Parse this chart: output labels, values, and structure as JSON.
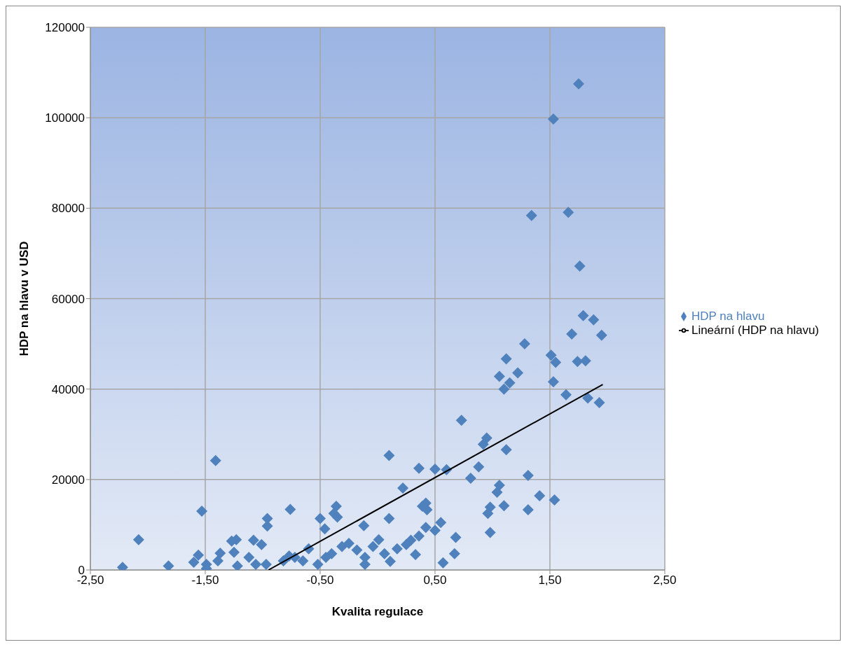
{
  "chart_data": {
    "type": "scatter",
    "xlabel": "Kvalita regulace",
    "ylabel": "HDP na hlavu v USD",
    "xlim": [
      -2.5,
      2.5
    ],
    "xticks": [
      {
        "value": -2.5,
        "label": "-2,50"
      },
      {
        "value": -1.5,
        "label": "-1,50"
      },
      {
        "value": -0.5,
        "label": "-0,50"
      },
      {
        "value": 0.5,
        "label": "0,50"
      },
      {
        "value": 1.5,
        "label": "1,50"
      },
      {
        "value": 2.5,
        "label": "2,50"
      }
    ],
    "ylim": [
      0,
      120000
    ],
    "yticks": [
      0,
      20000,
      40000,
      60000,
      80000,
      100000,
      120000
    ],
    "grid": true,
    "legend": "right",
    "marker": "diamond",
    "series": [
      {
        "name": "HDP na hlavu",
        "color": "#4f81bd",
        "x": [
          1.75,
          1.53,
          1.34,
          1.66,
          1.76,
          1.79,
          1.69,
          1.88,
          1.95,
          1.28,
          1.51,
          1.55,
          1.12,
          1.22,
          1.06,
          1.15,
          1.1,
          1.53,
          1.74,
          1.81,
          1.64,
          1.83,
          1.93,
          0.73,
          0.95,
          0.92,
          1.12,
          0.1,
          0.88,
          0.36,
          0.5,
          0.6,
          0.81,
          1.31,
          0.22,
          1.06,
          1.04,
          1.41,
          1.54,
          1.31,
          1.1,
          0.98,
          0.96,
          0.98,
          0.42,
          0.39,
          0.43,
          0.1,
          0.55,
          0.68,
          0.67,
          0.57,
          0.11,
          0.5,
          0.36,
          0.42,
          0.29,
          0.33,
          0.25,
          0.17,
          0.06,
          0.01,
          -0.04,
          -0.11,
          -0.11,
          -0.12,
          -0.18,
          -0.25,
          -0.31,
          -0.35,
          -0.36,
          -0.38,
          -0.4,
          -0.46,
          -0.5,
          -0.45,
          -0.52,
          -0.6,
          -0.65,
          -0.72,
          -0.76,
          -0.77,
          -0.82,
          -0.96,
          -0.96,
          -1.01,
          -0.97,
          -1.06,
          -1.08,
          -1.12,
          -1.23,
          -1.27,
          -1.22,
          -1.25,
          -1.37,
          -1.41,
          -1.39,
          -1.53,
          -1.49,
          -1.56,
          -1.6,
          -2.08,
          -1.82,
          -2.22,
          -1.49
        ],
        "values": [
          107500,
          99700,
          78400,
          79100,
          67200,
          56250,
          52200,
          55300,
          51900,
          50000,
          47500,
          45900,
          46700,
          43600,
          42800,
          41400,
          40000,
          41600,
          46100,
          46250,
          38750,
          38000,
          37000,
          33100,
          29200,
          27800,
          26600,
          25300,
          22800,
          22500,
          22300,
          22200,
          20300,
          20900,
          18100,
          18750,
          17200,
          16400,
          15500,
          13300,
          14200,
          13900,
          12500,
          8300,
          14800,
          14100,
          13300,
          11400,
          10500,
          7200,
          3600,
          1600,
          1900,
          8750,
          7500,
          9400,
          6600,
          3400,
          5600,
          4700,
          3600,
          6700,
          5200,
          2800,
          1250,
          9800,
          4400,
          5900,
          5200,
          11700,
          14100,
          12500,
          3600,
          9100,
          11400,
          2800,
          1250,
          4700,
          2000,
          2800,
          13400,
          3100,
          2000,
          9700,
          11400,
          5600,
          1250,
          1250,
          6600,
          2800,
          6700,
          6400,
          900,
          3900,
          3700,
          24200,
          2000,
          13000,
          1250,
          3300,
          1700,
          6700,
          900,
          600,
          300
        ]
      },
      {
        "name": "Lineární (HDP na hlavu)",
        "type": "line",
        "color": "#000000",
        "marker": "none",
        "x": [
          -0.95,
          1.96
        ],
        "values": [
          0,
          41000
        ]
      }
    ]
  }
}
